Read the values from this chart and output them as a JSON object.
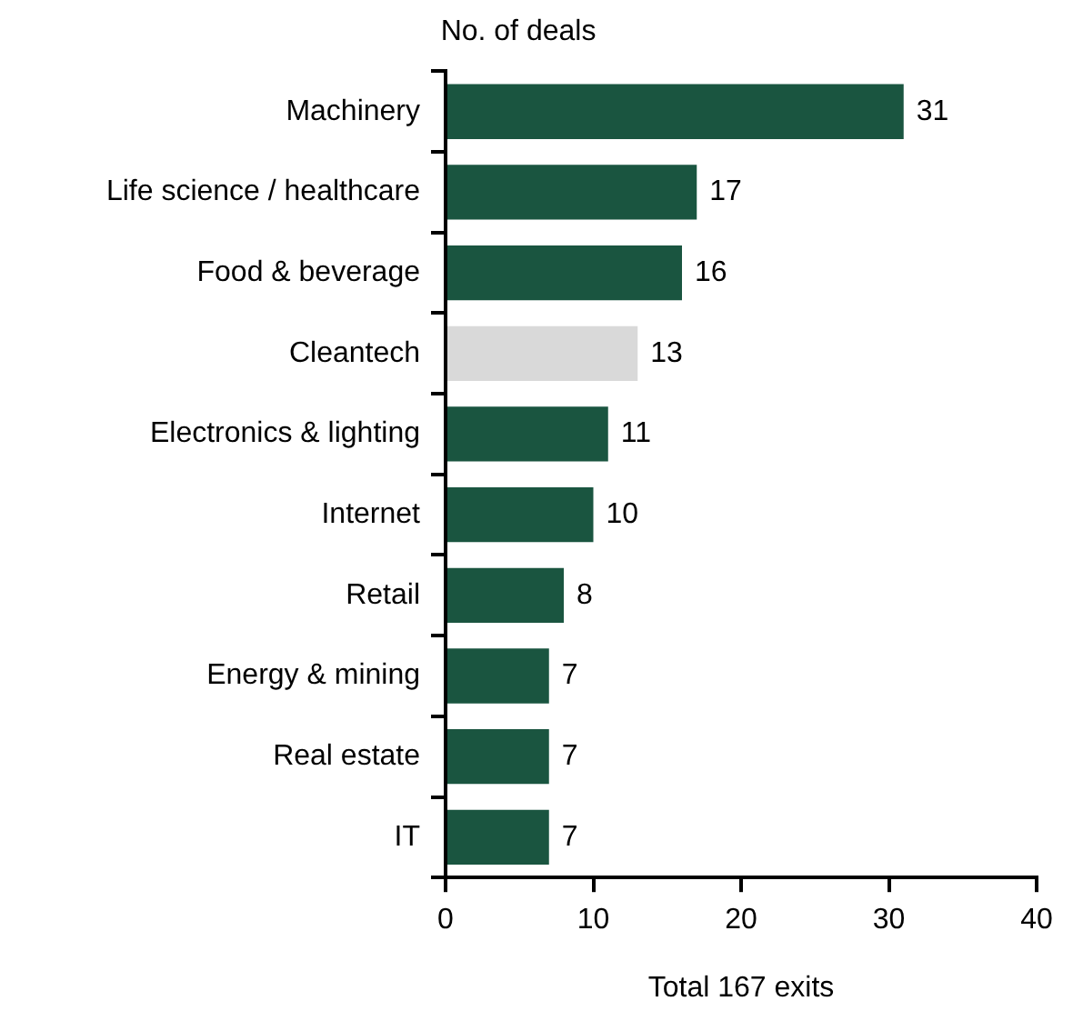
{
  "chart_data": {
    "type": "bar",
    "orientation": "horizontal",
    "title": "No. of deals",
    "xlabel": "Total 167 exits",
    "categories": [
      "Machinery",
      "Life science / healthcare",
      "Food & beverage",
      "Cleantech",
      "Electronics & lighting",
      "Internet",
      "Retail",
      "Energy & mining",
      "Real estate",
      "IT"
    ],
    "values": [
      31,
      17,
      16,
      13,
      11,
      10,
      8,
      7,
      7,
      7
    ],
    "colors": [
      "#1a5540",
      "#1a5540",
      "#1a5540",
      "#d9d9d9",
      "#1a5540",
      "#1a5540",
      "#1a5540",
      "#1a5540",
      "#1a5540",
      "#1a5540"
    ],
    "xlim": [
      0,
      40
    ],
    "xticks": [
      0,
      10,
      20,
      30,
      40
    ],
    "grid": false,
    "legend": false,
    "data_labels": true
  }
}
